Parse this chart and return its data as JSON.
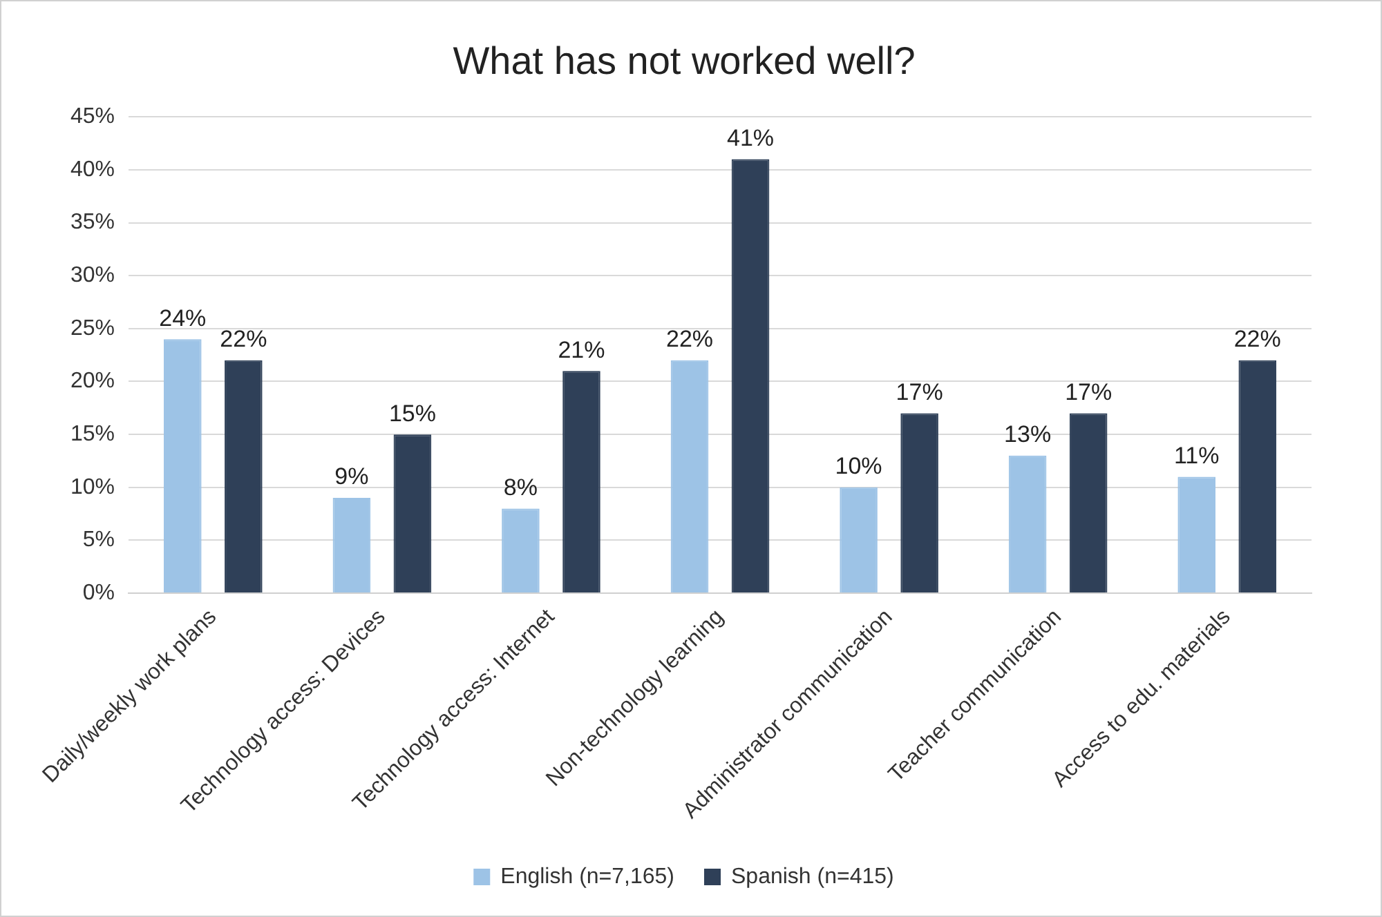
{
  "chart_data": {
    "type": "bar",
    "title": "What has not worked well?",
    "categories": [
      "Daily/weekly work plans",
      "Technology access: Devices",
      "Technology access: Internet",
      "Non-technology learning",
      "Administrator communication",
      "Teacher communication",
      "Access to edu. materials"
    ],
    "series": [
      {
        "name": "English (n=7,165)",
        "color": "#9dc3e6",
        "values": [
          24,
          9,
          8,
          22,
          10,
          13,
          11
        ],
        "value_labels": [
          "24%",
          "9%",
          "8%",
          "22%",
          "10%",
          "13%",
          "11%"
        ]
      },
      {
        "name": "Spanish (n=415)",
        "color": "#2f4058",
        "values": [
          22,
          15,
          21,
          41,
          17,
          17,
          22
        ],
        "value_labels": [
          "22%",
          "15%",
          "21%",
          "41%",
          "17%",
          "17%",
          "22%"
        ]
      }
    ],
    "ylim": [
      0,
      45
    ],
    "yticks": [
      {
        "value": 0,
        "label": "0%"
      },
      {
        "value": 5,
        "label": "5%"
      },
      {
        "value": 10,
        "label": "10%"
      },
      {
        "value": 15,
        "label": "15%"
      },
      {
        "value": 20,
        "label": "20%"
      },
      {
        "value": 25,
        "label": "25%"
      },
      {
        "value": 30,
        "label": "30%"
      },
      {
        "value": 35,
        "label": "35%"
      },
      {
        "value": 40,
        "label": "40%"
      },
      {
        "value": 45,
        "label": "45%"
      }
    ],
    "grid": "y",
    "legend": "bottom"
  }
}
